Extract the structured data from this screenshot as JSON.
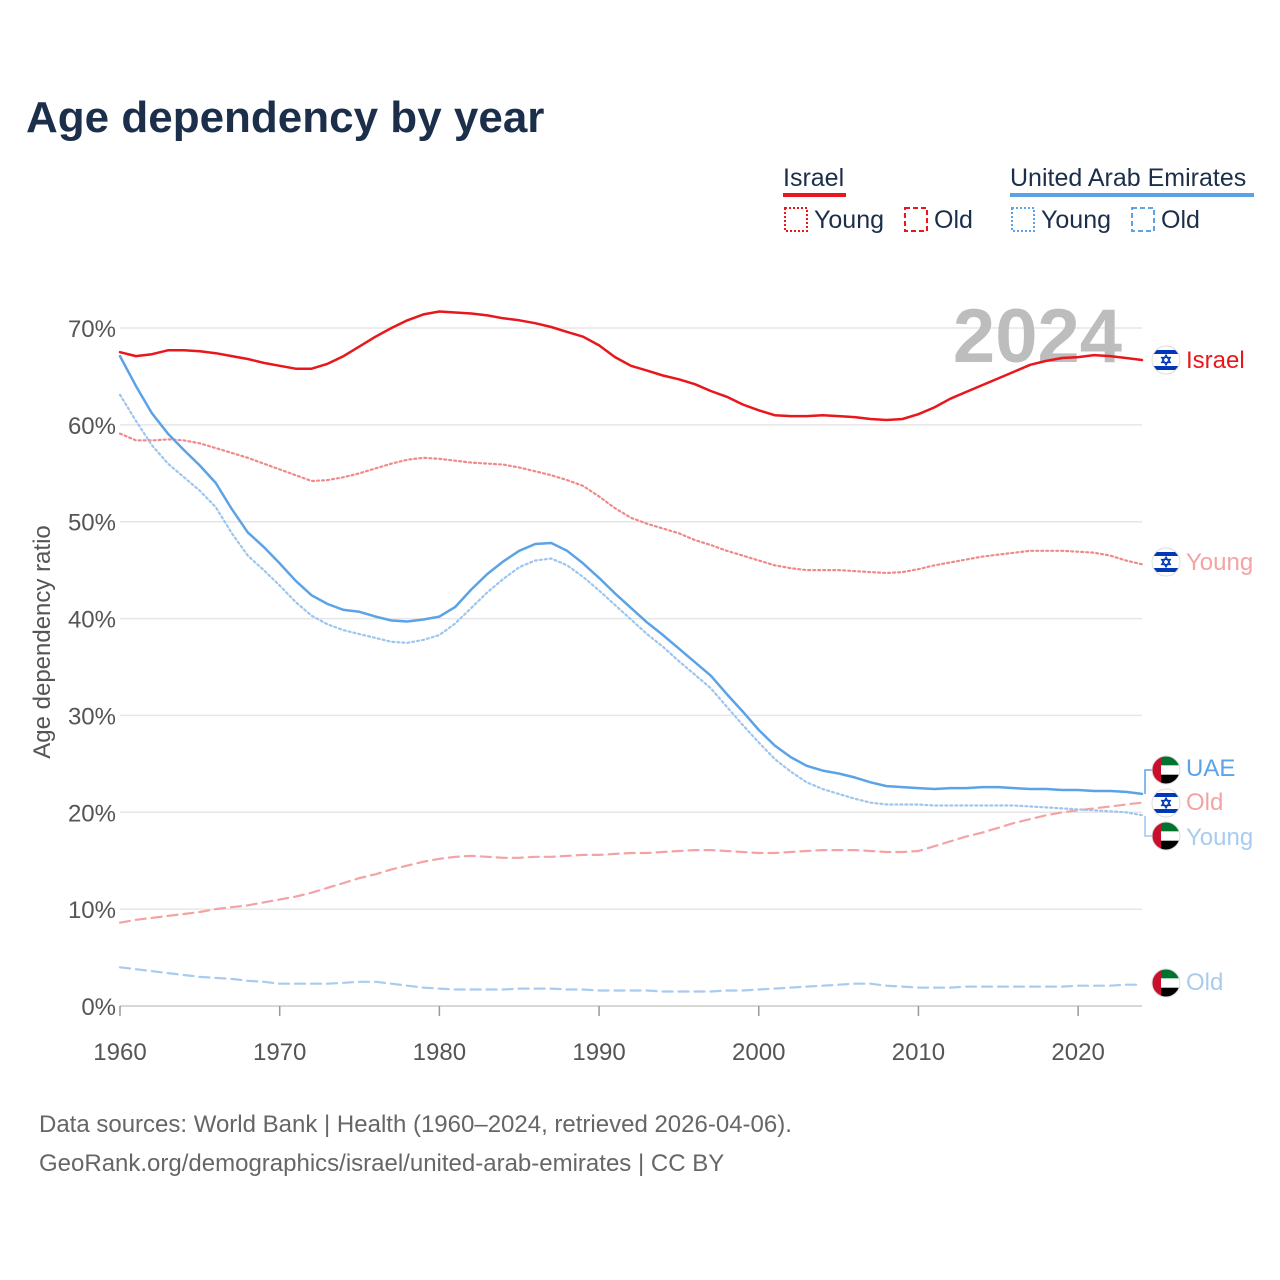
{
  "title": "Age dependency by year",
  "watermark_year": "2024",
  "legend": {
    "groups": [
      {
        "country": "Israel",
        "color": "#e8171c",
        "young": "Young",
        "old": "Old"
      },
      {
        "country": "United Arab Emirates",
        "color": "#5ba3e6",
        "young": "Young",
        "old": "Old"
      }
    ]
  },
  "end_labels": {
    "israel_total": "Israel",
    "israel_young": "Young",
    "uae_total": "UAE",
    "israel_old": "Old",
    "uae_young": "Young",
    "uae_old": "Old"
  },
  "footer": {
    "line1": "Data sources: World Bank | Health (1960–2024, retrieved 2026-04-06).",
    "line2": "GeoRank.org/demographics/israel/united-arab-emirates | CC BY"
  },
  "chart_data": {
    "type": "line",
    "title": "Age dependency by year",
    "xlabel": "",
    "ylabel": "Age dependency ratio",
    "xlim": [
      1960,
      2024
    ],
    "ylim": [
      0,
      72
    ],
    "x_ticks": [
      1960,
      1970,
      1980,
      1990,
      2000,
      2010,
      2020
    ],
    "y_ticks": [
      0,
      10,
      20,
      30,
      40,
      50,
      60,
      70
    ],
    "y_tick_labels": [
      "0%",
      "10%",
      "20%",
      "30%",
      "40%",
      "50%",
      "60%",
      "70%"
    ],
    "x": [
      1960,
      1961,
      1962,
      1963,
      1964,
      1965,
      1966,
      1967,
      1968,
      1969,
      1970,
      1971,
      1972,
      1973,
      1974,
      1975,
      1976,
      1977,
      1978,
      1979,
      1980,
      1981,
      1982,
      1983,
      1984,
      1985,
      1986,
      1987,
      1988,
      1989,
      1990,
      1991,
      1992,
      1993,
      1994,
      1995,
      1996,
      1997,
      1998,
      1999,
      2000,
      2001,
      2002,
      2003,
      2004,
      2005,
      2006,
      2007,
      2008,
      2009,
      2010,
      2011,
      2012,
      2013,
      2014,
      2015,
      2016,
      2017,
      2018,
      2019,
      2020,
      2021,
      2022,
      2023,
      2024
    ],
    "series": [
      {
        "name": "Israel",
        "style": "solid",
        "color": "#e8171c",
        "values": [
          67.5,
          67.1,
          67.3,
          67.7,
          67.7,
          67.6,
          67.4,
          67.1,
          66.8,
          66.4,
          66.1,
          65.8,
          65.8,
          66.3,
          67.1,
          68.1,
          69.1,
          70.0,
          70.8,
          71.4,
          71.7,
          71.6,
          71.5,
          71.3,
          71.0,
          70.8,
          70.5,
          70.1,
          69.6,
          69.1,
          68.2,
          67.0,
          66.1,
          65.6,
          65.1,
          64.7,
          64.2,
          63.5,
          62.9,
          62.1,
          61.5,
          61.0,
          60.9,
          60.9,
          61.0,
          60.9,
          60.8,
          60.6,
          60.5,
          60.6,
          61.1,
          61.8,
          62.7,
          63.4,
          64.1,
          64.8,
          65.5,
          66.2,
          66.6,
          66.9,
          67.0,
          67.2,
          67.1,
          66.9,
          66.7
        ]
      },
      {
        "name": "Israel Young",
        "style": "dotted",
        "color": "#f08a8a",
        "values": [
          59.1,
          58.4,
          58.4,
          58.5,
          58.4,
          58.1,
          57.6,
          57.1,
          56.6,
          56.0,
          55.4,
          54.8,
          54.2,
          54.3,
          54.6,
          55.0,
          55.5,
          56.0,
          56.4,
          56.6,
          56.5,
          56.3,
          56.1,
          56.0,
          55.9,
          55.6,
          55.2,
          54.8,
          54.3,
          53.7,
          52.6,
          51.4,
          50.4,
          49.8,
          49.3,
          48.8,
          48.1,
          47.6,
          47.0,
          46.5,
          46.0,
          45.5,
          45.2,
          45.0,
          45.0,
          45.0,
          44.9,
          44.8,
          44.7,
          44.8,
          45.1,
          45.5,
          45.8,
          46.1,
          46.4,
          46.6,
          46.8,
          47.0,
          47.0,
          47.0,
          46.9,
          46.8,
          46.5,
          46.0,
          45.6
        ]
      },
      {
        "name": "Israel Old",
        "style": "dashed",
        "color": "#f4a3a3",
        "values": [
          8.6,
          8.9,
          9.1,
          9.3,
          9.5,
          9.7,
          10.0,
          10.2,
          10.4,
          10.7,
          11.0,
          11.3,
          11.7,
          12.2,
          12.7,
          13.2,
          13.6,
          14.1,
          14.5,
          14.9,
          15.2,
          15.4,
          15.5,
          15.4,
          15.3,
          15.3,
          15.4,
          15.4,
          15.5,
          15.6,
          15.6,
          15.7,
          15.8,
          15.8,
          15.9,
          16.0,
          16.1,
          16.1,
          16.0,
          15.9,
          15.8,
          15.8,
          15.9,
          16.0,
          16.1,
          16.1,
          16.1,
          16.0,
          15.9,
          15.9,
          16.0,
          16.5,
          17.0,
          17.5,
          17.9,
          18.4,
          18.9,
          19.3,
          19.7,
          20.0,
          20.2,
          20.4,
          20.6,
          20.8,
          21.0
        ]
      },
      {
        "name": "UAE",
        "style": "solid",
        "color": "#5ba3e6",
        "values": [
          67.1,
          64.0,
          61.2,
          59.1,
          57.4,
          55.8,
          54.0,
          51.3,
          48.9,
          47.4,
          45.7,
          43.9,
          42.4,
          41.5,
          40.9,
          40.7,
          40.2,
          39.8,
          39.7,
          39.9,
          40.2,
          41.2,
          43.0,
          44.6,
          45.9,
          47.0,
          47.7,
          47.8,
          47.0,
          45.7,
          44.2,
          42.6,
          41.1,
          39.6,
          38.3,
          36.9,
          35.5,
          34.1,
          32.2,
          30.4,
          28.5,
          26.9,
          25.7,
          24.8,
          24.3,
          24.0,
          23.6,
          23.1,
          22.7,
          22.6,
          22.5,
          22.4,
          22.5,
          22.5,
          22.6,
          22.6,
          22.5,
          22.4,
          22.4,
          22.3,
          22.3,
          22.2,
          22.2,
          22.1,
          21.9
        ]
      },
      {
        "name": "UAE Young",
        "style": "dotted",
        "color": "#9dc6ef",
        "values": [
          63.1,
          60.4,
          57.9,
          56.0,
          54.6,
          53.2,
          51.5,
          48.8,
          46.5,
          45.0,
          43.4,
          41.7,
          40.3,
          39.4,
          38.8,
          38.4,
          38.0,
          37.6,
          37.5,
          37.8,
          38.3,
          39.5,
          41.1,
          42.7,
          44.1,
          45.3,
          46.0,
          46.2,
          45.5,
          44.3,
          42.9,
          41.4,
          39.9,
          38.4,
          37.1,
          35.6,
          34.2,
          32.8,
          30.9,
          29.0,
          27.2,
          25.5,
          24.2,
          23.1,
          22.4,
          21.9,
          21.4,
          21.0,
          20.8,
          20.8,
          20.8,
          20.7,
          20.7,
          20.7,
          20.7,
          20.7,
          20.7,
          20.6,
          20.5,
          20.4,
          20.3,
          20.2,
          20.1,
          20.0,
          19.7
        ]
      },
      {
        "name": "UAE Old",
        "style": "dashed",
        "color": "#a8cbef",
        "values": [
          4.0,
          3.8,
          3.6,
          3.4,
          3.2,
          3.0,
          2.9,
          2.8,
          2.6,
          2.5,
          2.3,
          2.3,
          2.3,
          2.3,
          2.4,
          2.5,
          2.5,
          2.3,
          2.1,
          1.9,
          1.8,
          1.7,
          1.7,
          1.7,
          1.7,
          1.8,
          1.8,
          1.8,
          1.7,
          1.7,
          1.6,
          1.6,
          1.6,
          1.6,
          1.5,
          1.5,
          1.5,
          1.5,
          1.6,
          1.6,
          1.7,
          1.8,
          1.9,
          2.0,
          2.1,
          2.2,
          2.3,
          2.3,
          2.1,
          2.0,
          1.9,
          1.9,
          1.9,
          2.0,
          2.0,
          2.0,
          2.0,
          2.0,
          2.0,
          2.0,
          2.1,
          2.1,
          2.1,
          2.2,
          2.2
        ]
      }
    ]
  }
}
